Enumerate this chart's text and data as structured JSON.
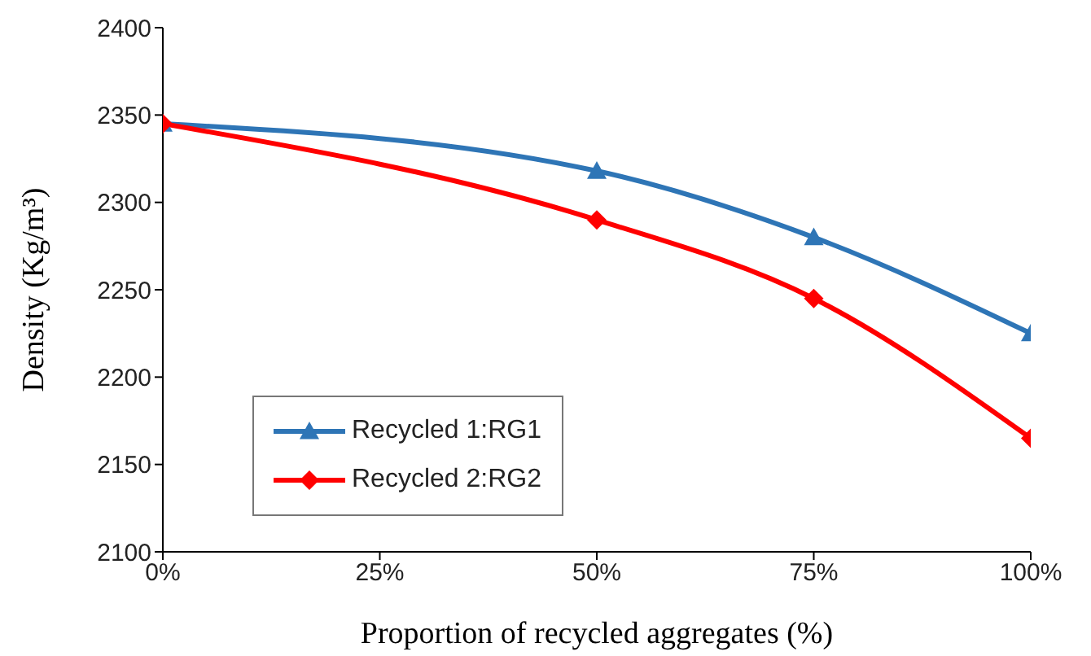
{
  "chart_data": {
    "type": "line",
    "xlabel": "Proportion of recycled  aggregates (%)",
    "ylabel": "Density (Kg/m³)",
    "x": [
      0,
      50,
      75,
      100
    ],
    "series": [
      {
        "name": "Recycled 1:RG1",
        "color": "#2e75b6",
        "values": [
          2345,
          2318,
          2280,
          2225
        ],
        "marker": "triangle"
      },
      {
        "name": "Recycled 2:RG2",
        "color": "#ff0000",
        "values": [
          2345,
          2290,
          2245,
          2165
        ],
        "marker": "diamond"
      }
    ],
    "xlim": [
      0,
      100
    ],
    "xticks": [
      {
        "value": 0,
        "label": "0%"
      },
      {
        "value": 25,
        "label": "25%"
      },
      {
        "value": 50,
        "label": "50%"
      },
      {
        "value": 75,
        "label": "75%"
      },
      {
        "value": 100,
        "label": "100%"
      }
    ],
    "ylim": [
      2100,
      2400
    ],
    "yticks": [
      2100,
      2150,
      2200,
      2250,
      2300,
      2350,
      2400
    ],
    "legend": "bottom left",
    "line_style": "solid"
  }
}
